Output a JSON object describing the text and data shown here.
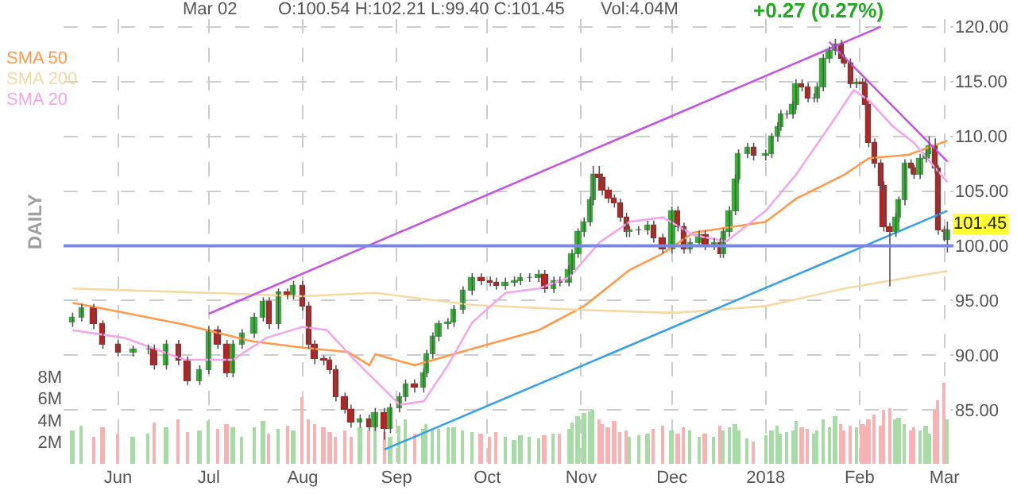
{
  "chart_data": {
    "type": "candlestick",
    "annotations": [
      "Mar 02",
      "O:100.54 H:102.21 L:99.40 C:101.45",
      "Vol:4.04M",
      "+0.27 (0.27%)",
      "DAILY",
      {
        "text": "101.45",
        "x": "2018-03-02",
        "y": 101.45
      }
    ],
    "x": [
      "2017-05-17",
      "2017-05-20",
      "2017-05-24",
      "2017-05-27",
      "2017-06-01",
      "2017-06-06",
      "2017-06-11",
      "2017-06-13",
      "2017-06-17",
      "2017-06-21",
      "2017-06-24",
      "2017-06-28",
      "2017-07-01",
      "2017-07-04",
      "2017-07-07",
      "2017-07-09",
      "2017-07-12",
      "2017-07-16",
      "2017-07-19",
      "2017-07-21",
      "2017-07-24",
      "2017-07-27",
      "2017-07-29",
      "2017-08-01",
      "2017-08-03",
      "2017-08-05",
      "2017-08-08",
      "2017-08-10",
      "2017-08-12",
      "2017-08-15",
      "2017-08-17",
      "2017-08-20",
      "2017-08-23",
      "2017-08-25",
      "2017-08-28",
      "2017-08-30",
      "2017-09-02",
      "2017-09-04",
      "2017-09-07",
      "2017-09-10",
      "2017-09-11",
      "2017-09-13",
      "2017-09-15",
      "2017-09-18",
      "2017-09-20",
      "2017-09-23",
      "2017-09-26",
      "2017-09-29",
      "2017-10-02",
      "2017-10-04",
      "2017-10-07",
      "2017-10-10",
      "2017-10-12",
      "2017-10-15",
      "2017-10-18",
      "2017-10-20",
      "2017-10-23",
      "2017-10-25",
      "2017-10-28",
      "2017-10-29",
      "2017-10-31",
      "2017-11-02",
      "2017-11-04",
      "2017-11-05",
      "2017-11-07",
      "2017-11-08",
      "2017-11-10",
      "2017-11-12",
      "2017-11-14",
      "2017-11-16",
      "2017-11-17",
      "2017-11-20",
      "2017-11-23",
      "2017-11-25",
      "2017-11-28",
      "2017-12-01",
      "2017-12-03",
      "2017-12-05",
      "2017-12-07",
      "2017-12-10",
      "2017-12-12",
      "2017-12-15",
      "2017-12-17",
      "2017-12-18",
      "2017-12-20",
      "2017-12-22",
      "2017-12-23",
      "2017-12-26",
      "2017-12-28",
      "2018-01-01",
      "2018-01-03",
      "2018-01-05",
      "2018-01-06",
      "2018-01-08",
      "2018-01-10",
      "2018-01-11",
      "2018-01-13",
      "2018-01-15",
      "2018-01-17",
      "2018-01-18",
      "2018-01-20",
      "2018-01-22",
      "2018-01-24",
      "2018-01-26",
      "2018-01-27",
      "2018-01-29",
      "2018-01-31",
      "2018-02-02",
      "2018-02-03",
      "2018-02-04",
      "2018-02-06",
      "2018-02-08",
      "2018-02-09",
      "2018-02-11",
      "2018-02-13",
      "2018-02-14",
      "2018-02-16",
      "2018-02-18",
      "2018-02-19",
      "2018-02-21",
      "2018-02-23",
      "2018-02-24",
      "2018-02-26",
      "2018-02-27",
      "2018-03-01",
      "2018-03-02"
    ],
    "series": [
      {
        "type": "bar",
        "axis": "y2",
        "values": [
          3.0,
          3.5,
          2.5,
          3.4,
          2.7,
          2.5,
          2.8,
          3.8,
          3.3,
          4.0,
          2.9,
          3.0,
          3.9,
          3.2,
          3.6,
          3.4,
          2.5,
          3.4,
          3.9,
          2.8,
          3.2,
          3.5,
          3.0,
          6.1,
          4.0,
          3.7,
          3.3,
          2.9,
          2.4,
          3.1,
          2.5,
          3.3,
          3.0,
          3.6,
          2.9,
          2.4,
          3.5,
          4.1,
          2.8,
          3.2,
          3.6,
          3.0,
          3.2,
          3.3,
          3.4,
          3.0,
          2.9,
          2.7,
          2.4,
          2.9,
          2.5,
          2.2,
          2.6,
          2.4,
          2.3,
          2.6,
          2.7,
          2.8,
          3.2,
          3.8,
          4.4,
          4.6,
          4.8,
          4.9,
          4.0,
          3.6,
          3.4,
          3.9,
          2.9,
          3.0,
          2.4,
          2.6,
          2.8,
          3.2,
          3.5,
          3.0,
          2.8,
          3.3,
          3.0,
          2.5,
          2.7,
          2.4,
          3.5,
          3.0,
          3.4,
          3.7,
          3.0,
          2.3,
          2.1,
          2.6,
          3.1,
          3.5,
          2.8,
          2.9,
          3.0,
          3.9,
          3.4,
          3.2,
          2.7,
          3.0,
          4.0,
          3.4,
          4.3,
          3.7,
          3.0,
          3.5,
          3.3,
          3.7,
          3.5,
          4.0,
          4.5,
          3.5,
          5.0,
          5.1,
          4.0,
          4.2,
          3.6,
          3.1,
          3.4,
          3.0,
          3.5,
          2.8,
          5.0,
          5.8,
          7.4,
          4.0
        ],
        "colors": [
          "#a6dba6",
          "#a6dba6",
          "#f7b3b3",
          "#f7b3b3",
          "#f7b3b3",
          "#a6dba6",
          "#a6dba6",
          "#f7b3b3",
          "#a6dba6",
          "#f7b3b3",
          "#f7b3b3",
          "#a6dba6",
          "#a6dba6",
          "#f7b3b3",
          "#f7b3b3",
          "#a6dba6",
          "#a6dba6",
          "#a6dba6",
          "#a6dba6",
          "#f7b3b3",
          "#a6dba6",
          "#f7b3b3",
          "#a6dba6",
          "#f7b3b3",
          "#f7b3b3",
          "#f7b3b3",
          "#f7b3b3",
          "#f7b3b3",
          "#f7b3b3",
          "#f7b3b3",
          "#f7b3b3",
          "#a6dba6",
          "#f7b3b3",
          "#a6dba6",
          "#f7b3b3",
          "#a6dba6",
          "#a6dba6",
          "#a6dba6",
          "#f7b3b3",
          "#a6dba6",
          "#a6dba6",
          "#a6dba6",
          "#a6dba6",
          "#a6dba6",
          "#a6dba6",
          "#a6dba6",
          "#a6dba6",
          "#f7b3b3",
          "#f7b3b3",
          "#f7b3b3",
          "#a6dba6",
          "#a6dba6",
          "#a6dba6",
          "#a6dba6",
          "#a6dba6",
          "#f7b3b3",
          "#a6dba6",
          "#f7b3b3",
          "#a6dba6",
          "#a6dba6",
          "#a6dba6",
          "#a6dba6",
          "#a6dba6",
          "#a6dba6",
          "#f7b3b3",
          "#f7b3b3",
          "#f7b3b3",
          "#f7b3b3",
          "#f7b3b3",
          "#f7b3b3",
          "#a6dba6",
          "#a6dba6",
          "#a6dba6",
          "#f7b3b3",
          "#f7b3b3",
          "#a6dba6",
          "#f7b3b3",
          "#f7b3b3",
          "#a6dba6",
          "#a6dba6",
          "#f7b3b3",
          "#a6dba6",
          "#f7b3b3",
          "#a6dba6",
          "#a6dba6",
          "#a6dba6",
          "#a6dba6",
          "#a6dba6",
          "#f7b3b3",
          "#a6dba6",
          "#a6dba6",
          "#a6dba6",
          "#a6dba6",
          "#a6dba6",
          "#a6dba6",
          "#a6dba6",
          "#f7b3b3",
          "#f7b3b3",
          "#a6dba6",
          "#a6dba6",
          "#a6dba6",
          "#a6dba6",
          "#a6dba6",
          "#f7b3b3",
          "#f7b3b3",
          "#f7b3b3",
          "#a6dba6",
          "#f7b3b3",
          "#f7b3b3",
          "#f7b3b3",
          "#f7b3b3",
          "#f7b3b3",
          "#f7b3b3",
          "#f7b3b3",
          "#a6dba6",
          "#a6dba6",
          "#a6dba6",
          "#f7b3b3",
          "#f7b3b3",
          "#a6dba6",
          "#a6dba6",
          "#a6dba6",
          "#f7b3b3",
          "#f7b3b3",
          "#f7b3b3",
          "#a6dba6"
        ]
      },
      {
        "type": "line",
        "name": "SMA 50",
        "color": "#ff9a4d",
        "x": [
          "2017-05-17",
          "2017-06-03",
          "2017-06-23",
          "2017-07-15",
          "2017-08-01",
          "2017-08-16",
          "2017-08-23",
          "2017-08-25",
          "2017-09-07",
          "2017-09-26",
          "2017-10-18",
          "2017-11-02",
          "2017-11-17",
          "2017-11-28",
          "2017-12-08",
          "2018-01-01",
          "2018-01-11",
          "2018-01-27",
          "2018-02-04",
          "2018-02-17",
          "2018-03-02"
        ],
        "values": [
          94.8,
          93.9,
          92.8,
          91.3,
          90.7,
          90.3,
          89.1,
          90.1,
          89.1,
          90.6,
          92.3,
          94.5,
          97.8,
          99.3,
          101.2,
          102.2,
          104.3,
          106.5,
          108.0,
          108.3,
          109.6
        ]
      },
      {
        "type": "line",
        "name": "SMA 200",
        "color": "#f5d9a3",
        "x": [
          "2017-05-17",
          "2017-07-01",
          "2017-08-01",
          "2017-08-25",
          "2017-09-26",
          "2017-10-28",
          "2017-11-28",
          "2017-12-03",
          "2018-01-01",
          "2018-01-27",
          "2018-02-17",
          "2018-03-02"
        ],
        "values": [
          96.1,
          95.7,
          95.4,
          95.7,
          94.6,
          94.2,
          93.9,
          93.9,
          94.5,
          96.1,
          97.1,
          97.7
        ]
      },
      {
        "type": "line",
        "name": "SMA 20",
        "color": "#f4a6e8",
        "x": [
          "2017-05-17",
          "2017-06-03",
          "2017-06-23",
          "2017-07-09",
          "2017-07-20",
          "2017-08-01",
          "2017-08-09",
          "2017-08-18",
          "2017-08-25",
          "2017-09-02",
          "2017-09-10",
          "2017-09-18",
          "2017-09-26",
          "2017-10-07",
          "2017-10-18",
          "2017-10-28",
          "2017-11-07",
          "2017-11-17",
          "2017-11-28",
          "2017-12-08",
          "2017-12-19",
          "2018-01-01",
          "2018-01-11",
          "2018-01-22",
          "2018-01-30",
          "2018-02-04",
          "2018-02-12",
          "2018-02-19",
          "2018-03-02"
        ],
        "values": [
          92.3,
          91.6,
          89.6,
          89.6,
          91.6,
          92.6,
          92.3,
          89.6,
          87.7,
          85.5,
          85.8,
          89.1,
          93.0,
          95.7,
          96.1,
          97.1,
          100.3,
          102.2,
          102.6,
          101.0,
          100.4,
          103.2,
          106.5,
          110.9,
          114.2,
          113.3,
          110.9,
          109.4,
          105.8
        ]
      },
      {
        "type": "line",
        "color": "#c455e0",
        "x": [
          "2017-07-01",
          "2018-02-08"
        ],
        "values": [
          93.8,
          120.0
        ]
      },
      {
        "type": "line",
        "color": "#c455e0",
        "x": [
          "2018-01-22",
          "2018-03-02"
        ],
        "values": [
          118.6,
          107.7
        ]
      },
      {
        "type": "line",
        "color": "#3aa0e8",
        "x": [
          "2017-08-28",
          "2018-03-02"
        ],
        "values": [
          81.4,
          103.2
        ]
      },
      {
        "colors": [
          "#2fb52f",
          "#2fb52f",
          "#c41a1a",
          "#c41a1a",
          "#c41a1a",
          "#2fb52f",
          "#2fb52f",
          "#c41a1a",
          "#2fb52f",
          "#c41a1a",
          "#c41a1a",
          "#2fb52f",
          "#2fb52f",
          "#c41a1a",
          "#c41a1a",
          "#2fb52f",
          "#2fb52f",
          "#2fb52f",
          "#2fb52f",
          "#c41a1a",
          "#2fb52f",
          "#c41a1a",
          "#2fb52f",
          "#c41a1a",
          "#c41a1a",
          "#c41a1a",
          "#c41a1a",
          "#c41a1a",
          "#c41a1a",
          "#c41a1a",
          "#c41a1a",
          "#2fb52f",
          "#c41a1a",
          "#2fb52f",
          "#c41a1a",
          "#2fb52f",
          "#2fb52f",
          "#2fb52f",
          "#c41a1a",
          "#2fb52f",
          "#2fb52f",
          "#2fb52f",
          "#2fb52f",
          "#2fb52f",
          "#2fb52f",
          "#2fb52f",
          "#2fb52f",
          "#c41a1a",
          "#c41a1a",
          "#c41a1a",
          "#2fb52f",
          "#2fb52f",
          "#2fb52f",
          "#2fb52f",
          "#2fb52f",
          "#c41a1a",
          "#2fb52f",
          "#c41a1a",
          "#2fb52f",
          "#2fb52f",
          "#2fb52f",
          "#2fb52f",
          "#2fb52f",
          "#2fb52f",
          "#c41a1a",
          "#c41a1a",
          "#c41a1a",
          "#c41a1a",
          "#c41a1a",
          "#c41a1a",
          "#2fb52f",
          "#2fb52f",
          "#2fb52f",
          "#c41a1a",
          "#c41a1a",
          "#2fb52f",
          "#c41a1a",
          "#c41a1a",
          "#2fb52f",
          "#2fb52f",
          "#c41a1a",
          "#2fb52f",
          "#c41a1a",
          "#2fb52f",
          "#2fb52f",
          "#2fb52f",
          "#2fb52f",
          "#2fb52f",
          "#c41a1a",
          "#2fb52f",
          "#2fb52f",
          "#2fb52f",
          "#2fb52f",
          "#2fb52f",
          "#2fb52f",
          "#2fb52f",
          "#c41a1a",
          "#c41a1a",
          "#2fb52f",
          "#2fb52f",
          "#2fb52f",
          "#2fb52f",
          "#2fb52f",
          "#c41a1a",
          "#c41a1a",
          "#c41a1a",
          "#2fb52f",
          "#c41a1a",
          "#c41a1a",
          "#c41a1a",
          "#c41a1a",
          "#c41a1a",
          "#c41a1a",
          "#c41a1a",
          "#2fb52f",
          "#2fb52f",
          "#2fb52f",
          "#c41a1a",
          "#c41a1a",
          "#2fb52f",
          "#2fb52f",
          "#2fb52f",
          "#c41a1a",
          "#c41a1a",
          "#c41a1a",
          "#2fb52f"
        ],
        "ohlc": [
          [
            93.0,
            93.9,
            92.6,
            93.5
          ],
          [
            93.5,
            94.7,
            93.1,
            94.3
          ],
          [
            94.3,
            94.7,
            92.4,
            92.8
          ],
          [
            92.8,
            93.2,
            90.6,
            91.0
          ],
          [
            91.0,
            91.4,
            89.9,
            90.3
          ],
          [
            90.3,
            90.9,
            89.9,
            90.5
          ],
          [
            90.5,
            91.0,
            90.1,
            90.6
          ],
          [
            90.6,
            91.0,
            88.7,
            89.1
          ],
          [
            89.1,
            91.4,
            88.7,
            91.0
          ],
          [
            91.0,
            91.4,
            89.1,
            89.5
          ],
          [
            89.5,
            89.9,
            87.3,
            87.7
          ],
          [
            87.7,
            89.1,
            87.3,
            88.7
          ],
          [
            88.7,
            92.7,
            88.3,
            92.3
          ],
          [
            92.3,
            92.7,
            90.6,
            91.0
          ],
          [
            91.0,
            91.4,
            88.0,
            88.4
          ],
          [
            88.4,
            91.4,
            88.0,
            91.0
          ],
          [
            91.0,
            92.4,
            90.6,
            92.0
          ],
          [
            92.0,
            93.9,
            91.6,
            93.5
          ],
          [
            93.5,
            95.3,
            93.1,
            94.9
          ],
          [
            94.9,
            95.3,
            92.4,
            92.8
          ],
          [
            92.8,
            96.1,
            92.4,
            95.7
          ],
          [
            95.7,
            96.1,
            95.1,
            95.5
          ],
          [
            95.5,
            96.8,
            95.1,
            96.4
          ],
          [
            96.4,
            96.8,
            94.1,
            94.5
          ],
          [
            94.5,
            94.9,
            90.6,
            91.0
          ],
          [
            91.0,
            91.4,
            89.2,
            89.6
          ],
          [
            89.6,
            90.0,
            89.1,
            89.5
          ],
          [
            89.5,
            89.9,
            88.3,
            88.7
          ],
          [
            88.7,
            89.1,
            85.8,
            86.2
          ],
          [
            86.2,
            86.6,
            84.7,
            85.1
          ],
          [
            85.1,
            85.5,
            83.4,
            83.8
          ],
          [
            83.8,
            84.6,
            83.4,
            84.2
          ],
          [
            84.2,
            84.6,
            83.1,
            83.5
          ],
          [
            83.5,
            85.2,
            83.1,
            84.8
          ],
          [
            84.8,
            85.2,
            82.3,
            83.3
          ],
          [
            83.3,
            85.6,
            82.9,
            85.2
          ],
          [
            85.2,
            86.6,
            84.8,
            86.2
          ],
          [
            86.2,
            87.8,
            85.8,
            87.4
          ],
          [
            87.4,
            87.8,
            86.6,
            87.0
          ],
          [
            87.0,
            88.8,
            86.6,
            88.4
          ],
          [
            88.4,
            90.5,
            88.0,
            90.1
          ],
          [
            90.1,
            92.1,
            89.7,
            91.7
          ],
          [
            91.7,
            93.2,
            91.3,
            92.8
          ],
          [
            92.8,
            93.4,
            92.4,
            93.0
          ],
          [
            93.0,
            94.6,
            92.6,
            94.2
          ],
          [
            94.2,
            96.3,
            93.8,
            95.9
          ],
          [
            95.9,
            97.5,
            95.5,
            97.1
          ],
          [
            97.1,
            97.5,
            96.4,
            96.8
          ],
          [
            96.8,
            97.2,
            96.3,
            96.7
          ],
          [
            96.7,
            97.1,
            96.0,
            96.4
          ],
          [
            96.4,
            97.1,
            96.0,
            96.7
          ],
          [
            96.7,
            97.2,
            96.3,
            96.8
          ],
          [
            96.8,
            97.5,
            96.4,
            97.1
          ],
          [
            97.1,
            97.5,
            96.7,
            97.1
          ],
          [
            97.1,
            97.8,
            96.7,
            97.4
          ],
          [
            97.4,
            97.8,
            95.7,
            96.1
          ],
          [
            96.1,
            97.2,
            95.7,
            96.8
          ],
          [
            96.8,
            97.2,
            96.3,
            96.7
          ],
          [
            96.7,
            98.2,
            96.3,
            97.8
          ],
          [
            97.8,
            99.7,
            97.4,
            99.3
          ],
          [
            99.3,
            101.6,
            98.9,
            101.2
          ],
          [
            101.2,
            102.6,
            100.8,
            102.2
          ],
          [
            102.2,
            104.5,
            101.8,
            104.1
          ],
          [
            104.1,
            107.3,
            103.7,
            106.5
          ],
          [
            106.5,
            107.3,
            105.8,
            106.2
          ],
          [
            106.2,
            106.6,
            104.6,
            105.0
          ],
          [
            105.0,
            105.4,
            103.9,
            104.3
          ],
          [
            104.3,
            104.7,
            103.5,
            103.9
          ],
          [
            103.9,
            104.3,
            102.2,
            102.6
          ],
          [
            102.6,
            103.0,
            100.8,
            101.2
          ],
          [
            101.2,
            101.8,
            100.8,
            101.4
          ],
          [
            101.4,
            101.8,
            101.0,
            101.4
          ],
          [
            101.4,
            102.3,
            101.0,
            101.9
          ],
          [
            101.9,
            102.3,
            100.3,
            100.7
          ],
          [
            100.7,
            101.1,
            99.3,
            99.7
          ],
          [
            99.7,
            103.6,
            99.3,
            103.2
          ],
          [
            103.2,
            103.6,
            101.3,
            101.7
          ],
          [
            101.7,
            102.1,
            99.3,
            99.7
          ],
          [
            99.7,
            100.7,
            99.3,
            100.3
          ],
          [
            100.3,
            101.4,
            99.9,
            101.0
          ],
          [
            101.0,
            101.4,
            99.6,
            100.0
          ],
          [
            100.0,
            100.7,
            99.6,
            100.3
          ],
          [
            100.3,
            100.7,
            98.9,
            99.3
          ],
          [
            99.3,
            101.6,
            98.9,
            101.2
          ],
          [
            101.2,
            103.6,
            100.8,
            103.2
          ],
          [
            103.2,
            106.5,
            102.8,
            106.1
          ],
          [
            106.1,
            108.8,
            105.7,
            108.4
          ],
          [
            108.4,
            109.4,
            108.0,
            109.0
          ],
          [
            109.0,
            109.4,
            107.8,
            108.2
          ],
          [
            108.2,
            108.8,
            107.8,
            108.4
          ],
          [
            108.4,
            110.3,
            108.0,
            109.9
          ],
          [
            109.9,
            111.3,
            109.5,
            110.9
          ],
          [
            110.9,
            112.4,
            110.5,
            112.0
          ],
          [
            112.0,
            112.4,
            111.6,
            112.0
          ],
          [
            112.0,
            113.2,
            111.6,
            112.8
          ],
          [
            112.8,
            115.2,
            112.4,
            114.8
          ],
          [
            114.8,
            115.2,
            114.1,
            114.5
          ],
          [
            114.5,
            114.9,
            113.1,
            113.5
          ],
          [
            113.5,
            113.9,
            113.1,
            113.5
          ],
          [
            113.5,
            114.9,
            113.1,
            114.5
          ],
          [
            114.5,
            117.5,
            114.1,
            117.1
          ],
          [
            117.1,
            118.2,
            116.7,
            117.8
          ],
          [
            117.8,
            118.9,
            117.4,
            118.4
          ],
          [
            118.4,
            118.8,
            116.7,
            117.1
          ],
          [
            117.1,
            117.5,
            116.3,
            116.7
          ],
          [
            116.7,
            117.1,
            114.4,
            114.8
          ],
          [
            114.8,
            115.3,
            114.4,
            114.9
          ],
          [
            114.9,
            115.3,
            114.4,
            114.8
          ],
          [
            114.8,
            115.2,
            112.4,
            112.8
          ],
          [
            112.8,
            113.2,
            109.0,
            109.4
          ],
          [
            109.4,
            109.8,
            107.1,
            107.5
          ],
          [
            107.5,
            107.9,
            105.1,
            105.5
          ],
          [
            105.5,
            105.9,
            101.3,
            101.7
          ],
          [
            101.7,
            102.1,
            96.3,
            101.2
          ],
          [
            101.2,
            103.0,
            100.8,
            102.6
          ],
          [
            102.6,
            104.5,
            102.2,
            104.1
          ],
          [
            104.1,
            107.9,
            103.7,
            107.5
          ],
          [
            107.5,
            107.9,
            106.6,
            107.0
          ],
          [
            107.0,
            107.4,
            106.1,
            106.5
          ],
          [
            106.5,
            108.4,
            106.1,
            108.0
          ],
          [
            108.0,
            108.8,
            107.6,
            108.4
          ],
          [
            108.4,
            110.0,
            108.0,
            109.1
          ],
          [
            109.1,
            109.8,
            106.6,
            107.0
          ],
          [
            107.0,
            107.4,
            101.0,
            101.4
          ],
          [
            101.4,
            101.8,
            100.4,
            101.2
          ],
          [
            100.54,
            102.21,
            99.4,
            101.45
          ]
        ]
      }
    ],
    "ref_lines": [
      {
        "axis": "y",
        "value": 100,
        "color": "#7c88e0"
      }
    ],
    "xlim": [
      "2017-05-14",
      "2018-03-04"
    ],
    "xticks": [
      {
        "value": "2017-06-01",
        "label": "Jun"
      },
      {
        "value": "2017-07-01",
        "label": "Jul"
      },
      {
        "value": "2017-08-01",
        "label": "Aug"
      },
      {
        "value": "2017-09-01",
        "label": "Sep"
      },
      {
        "value": "2017-10-01",
        "label": "Oct"
      },
      {
        "value": "2017-11-01",
        "label": "Nov"
      },
      {
        "value": "2017-12-01",
        "label": "Dec"
      },
      {
        "value": "2018-01-01",
        "label": "2018"
      },
      {
        "value": "2018-02-01",
        "label": "Feb"
      },
      {
        "value": "2018-03-01",
        "label": "Mar"
      }
    ],
    "ylim": [
      80.1,
      120.7
    ],
    "yticks": [
      {
        "value": 85,
        "label": "85.00"
      },
      {
        "value": 90,
        "label": "90.00"
      },
      {
        "value": 95,
        "label": "95.00"
      },
      {
        "value": 100,
        "label": "100.00"
      },
      {
        "value": 105,
        "label": "105.00"
      },
      {
        "value": 110,
        "label": "110.00"
      },
      {
        "value": 115,
        "label": "115.00"
      },
      {
        "value": 120,
        "label": "120.00"
      }
    ],
    "y2lim": [
      0,
      40.7
    ],
    "y2ticks": [
      {
        "value": 2,
        "label": "2M"
      },
      {
        "value": 4,
        "label": "4M"
      },
      {
        "value": 6,
        "label": "6M"
      },
      {
        "value": 8,
        "label": "8M"
      }
    ],
    "grid": true
  }
}
